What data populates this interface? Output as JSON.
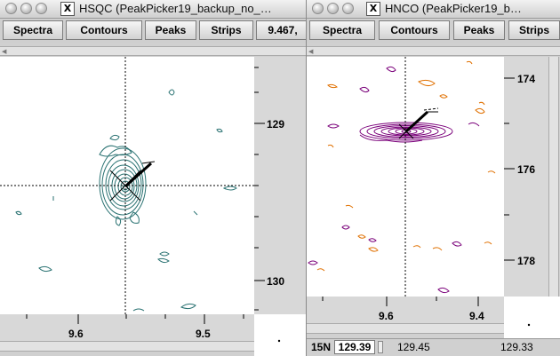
{
  "left_window": {
    "title": "HSQC (PeakPicker19_backup_no_…",
    "menu": [
      "Spectra",
      "Contours",
      "Peaks",
      "Strips",
      "9.467,"
    ],
    "x_ticks": [
      "9.6",
      "9.5"
    ],
    "y_ticks": [
      "129",
      "130"
    ],
    "contour_color": "#2a7272"
  },
  "right_window": {
    "title": "HNCO (PeakPicker19_b…",
    "menu": [
      "Spectra",
      "Contours",
      "Peaks",
      "Strips"
    ],
    "x_ticks": [
      "9.6",
      "9.4"
    ],
    "y_ticks": [
      "174",
      "176",
      "178"
    ],
    "contour_colors": {
      "positive": "#7a007a",
      "negative": "#e07000"
    },
    "status": {
      "axis": "15N",
      "plane": "129.39",
      "left": "129.45",
      "right": "129.33"
    }
  }
}
